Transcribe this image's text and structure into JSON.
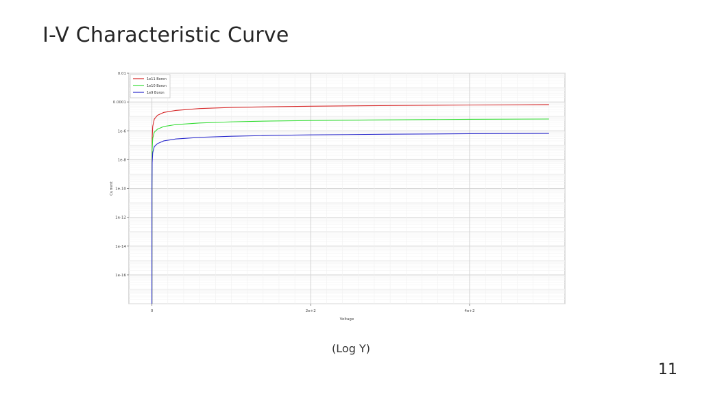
{
  "slide": {
    "title": "I-V Characteristic Curve",
    "caption": "(Log Y)",
    "page_number": "11"
  },
  "chart_data": {
    "type": "line",
    "title": "",
    "xlabel": "Voltage",
    "ylabel": "Current",
    "y_scale": "log",
    "xlim": [
      -29,
      520
    ],
    "ylim": [
      1e-18,
      0.01
    ],
    "x_ticks": [
      {
        "value": 0,
        "label": "0"
      },
      {
        "value": 200,
        "label": "2e+2"
      },
      {
        "value": 400,
        "label": "4e+2"
      }
    ],
    "y_ticks": [
      {
        "value": 0.01,
        "label": "0.01"
      },
      {
        "value": 0.0001,
        "label": "0.0001"
      },
      {
        "value": 1e-06,
        "label": "1e-6"
      },
      {
        "value": 1e-08,
        "label": "1e-8"
      },
      {
        "value": 1e-10,
        "label": "1e-10"
      },
      {
        "value": 1e-12,
        "label": "1e-12"
      },
      {
        "value": 1e-14,
        "label": "1e-14"
      },
      {
        "value": 1e-16,
        "label": "1e-16"
      }
    ],
    "grid": true,
    "legend_position": "top-left",
    "series": [
      {
        "name": "1e11 Boron",
        "color": "#d62728",
        "points": [
          [
            0,
            1e-18
          ],
          [
            0.05,
            1e-09
          ],
          [
            0.3,
            3e-07
          ],
          [
            1,
            2e-06
          ],
          [
            3,
            6.5e-06
          ],
          [
            7,
            1.2e-05
          ],
          [
            15,
            1.9e-05
          ],
          [
            30,
            2.6e-05
          ],
          [
            60,
            3.5e-05
          ],
          [
            100,
            4.2e-05
          ],
          [
            150,
            4.7e-05
          ],
          [
            200,
            5.1e-05
          ],
          [
            300,
            5.7e-05
          ],
          [
            400,
            6.2e-05
          ],
          [
            500,
            6.6e-05
          ]
        ]
      },
      {
        "name": "1e10 Boron",
        "color": "#33dd33",
        "points": [
          [
            0,
            1e-18
          ],
          [
            0.05,
            3e-10
          ],
          [
            0.3,
            5e-08
          ],
          [
            1,
            3e-07
          ],
          [
            3,
            8e-07
          ],
          [
            7,
            1.3e-06
          ],
          [
            15,
            2e-06
          ],
          [
            30,
            2.7e-06
          ],
          [
            60,
            3.5e-06
          ],
          [
            100,
            4.2e-06
          ],
          [
            150,
            4.8e-06
          ],
          [
            200,
            5.2e-06
          ],
          [
            300,
            5.8e-06
          ],
          [
            400,
            6.3e-06
          ],
          [
            500,
            6.6e-06
          ]
        ]
      },
      {
        "name": "1e9 Boron",
        "color": "#2b2bcc",
        "points": [
          [
            0,
            1e-18
          ],
          [
            0.05,
            1e-10
          ],
          [
            0.3,
            6e-09
          ],
          [
            1,
            3e-08
          ],
          [
            3,
            8e-08
          ],
          [
            7,
            1.3e-07
          ],
          [
            15,
            2e-07
          ],
          [
            30,
            2.7e-07
          ],
          [
            60,
            3.5e-07
          ],
          [
            100,
            4.2e-07
          ],
          [
            150,
            4.8e-07
          ],
          [
            200,
            5.2e-07
          ],
          [
            300,
            5.8e-07
          ],
          [
            400,
            6.3e-07
          ],
          [
            500,
            6.6e-07
          ]
        ]
      }
    ]
  }
}
